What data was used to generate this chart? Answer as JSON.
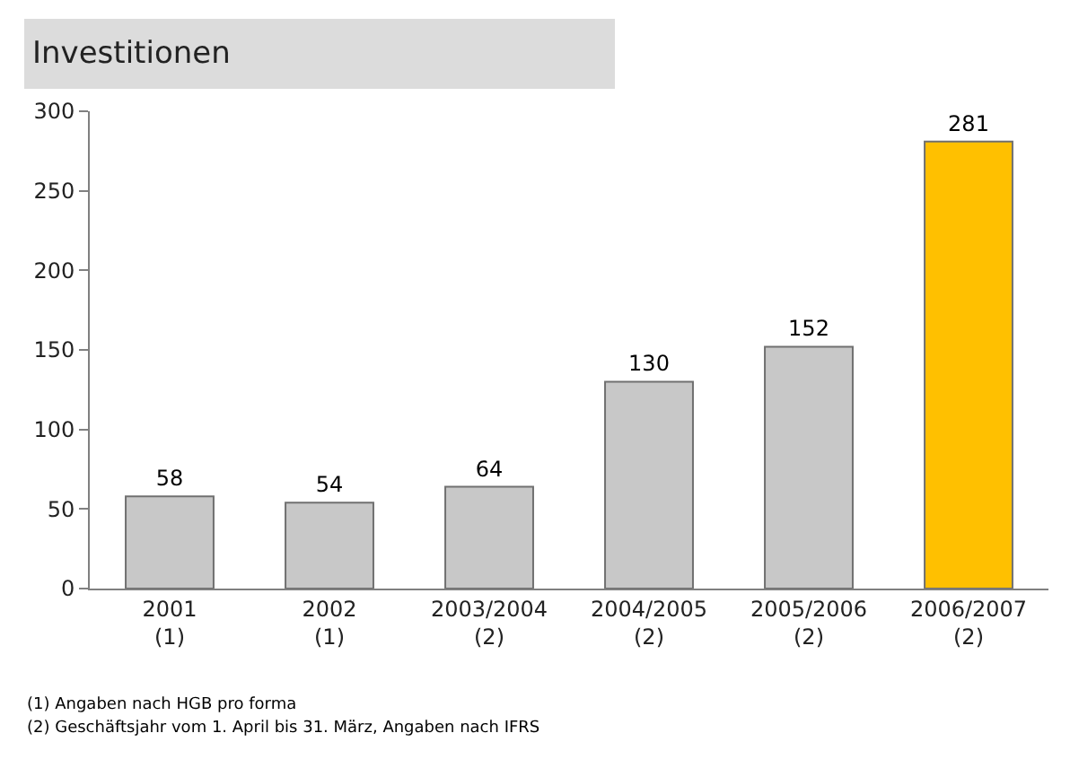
{
  "chart_data": {
    "type": "bar",
    "title": "Investitionen",
    "categories": [
      "2001\n(1)",
      "2002\n(1)",
      "2003/2004\n(2)",
      "2004/2005\n(2)",
      "2005/2006\n(2)",
      "2006/2007\n(2)"
    ],
    "values": [
      58,
      54,
      64,
      130,
      152,
      281
    ],
    "colors": [
      "#c8c8c8",
      "#c8c8c8",
      "#c8c8c8",
      "#c8c8c8",
      "#c8c8c8",
      "#ffc000"
    ],
    "data_labels": true,
    "ylim": [
      0,
      300
    ],
    "yticks": [
      0,
      50,
      100,
      150,
      200,
      250,
      300
    ],
    "legend": false,
    "annotations": [
      "(1) Angaben nach HGB pro forma",
      "(2) Geschäftsjahr vom 1. April bis 31. März, Angaben nach IFRS"
    ]
  }
}
